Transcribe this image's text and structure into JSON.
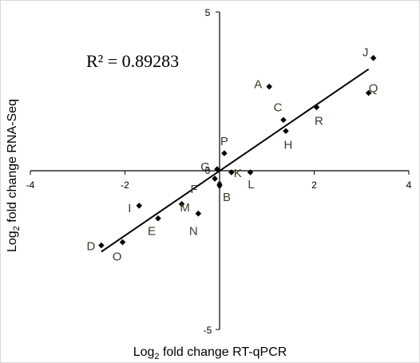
{
  "chart_data": {
    "type": "scatter",
    "xlabel_prefix": "Log",
    "xlabel_sub": "2",
    "xlabel_rest": " fold change RT-qPCR",
    "ylabel_prefix": "Log",
    "ylabel_sub": "2",
    "ylabel_rest": " fold change RNA-Seq",
    "xlim": [
      -4,
      4
    ],
    "ylim": [
      -5,
      5
    ],
    "x_ticks": [
      -4,
      -2,
      0,
      2,
      4
    ],
    "y_ticks": [
      -5,
      0,
      5
    ],
    "annotation": "R² = 0.89283",
    "grid": false,
    "points": [
      {
        "label": "A",
        "x": 1.05,
        "y": 2.65
      },
      {
        "label": "B",
        "x": 0.0,
        "y": -0.45
      },
      {
        "label": "C",
        "x": 1.35,
        "y": 1.6
      },
      {
        "label": "D",
        "x": -2.5,
        "y": -2.35
      },
      {
        "label": "E",
        "x": -1.3,
        "y": -1.5
      },
      {
        "label": "F",
        "x": -0.1,
        "y": -0.25
      },
      {
        "label": "G",
        "x": -0.05,
        "y": 0.05
      },
      {
        "label": "H",
        "x": 1.4,
        "y": 1.25
      },
      {
        "label": "I",
        "x": -1.7,
        "y": -1.1
      },
      {
        "label": "J",
        "x": 3.25,
        "y": 3.55
      },
      {
        "label": "K",
        "x": 0.25,
        "y": -0.05
      },
      {
        "label": "L",
        "x": 0.65,
        "y": -0.05
      },
      {
        "label": "M",
        "x": -0.8,
        "y": -1.05
      },
      {
        "label": "N",
        "x": -0.45,
        "y": -1.35
      },
      {
        "label": "O",
        "x": -2.05,
        "y": -2.25
      },
      {
        "label": "P",
        "x": 0.1,
        "y": 0.55
      },
      {
        "label": "Q",
        "x": 3.15,
        "y": 2.45
      },
      {
        "label": "R",
        "x": 2.05,
        "y": 2.0
      }
    ],
    "trendline": {
      "x": [
        -2.5,
        3.15
      ],
      "y": [
        -2.55,
        3.2
      ]
    }
  }
}
